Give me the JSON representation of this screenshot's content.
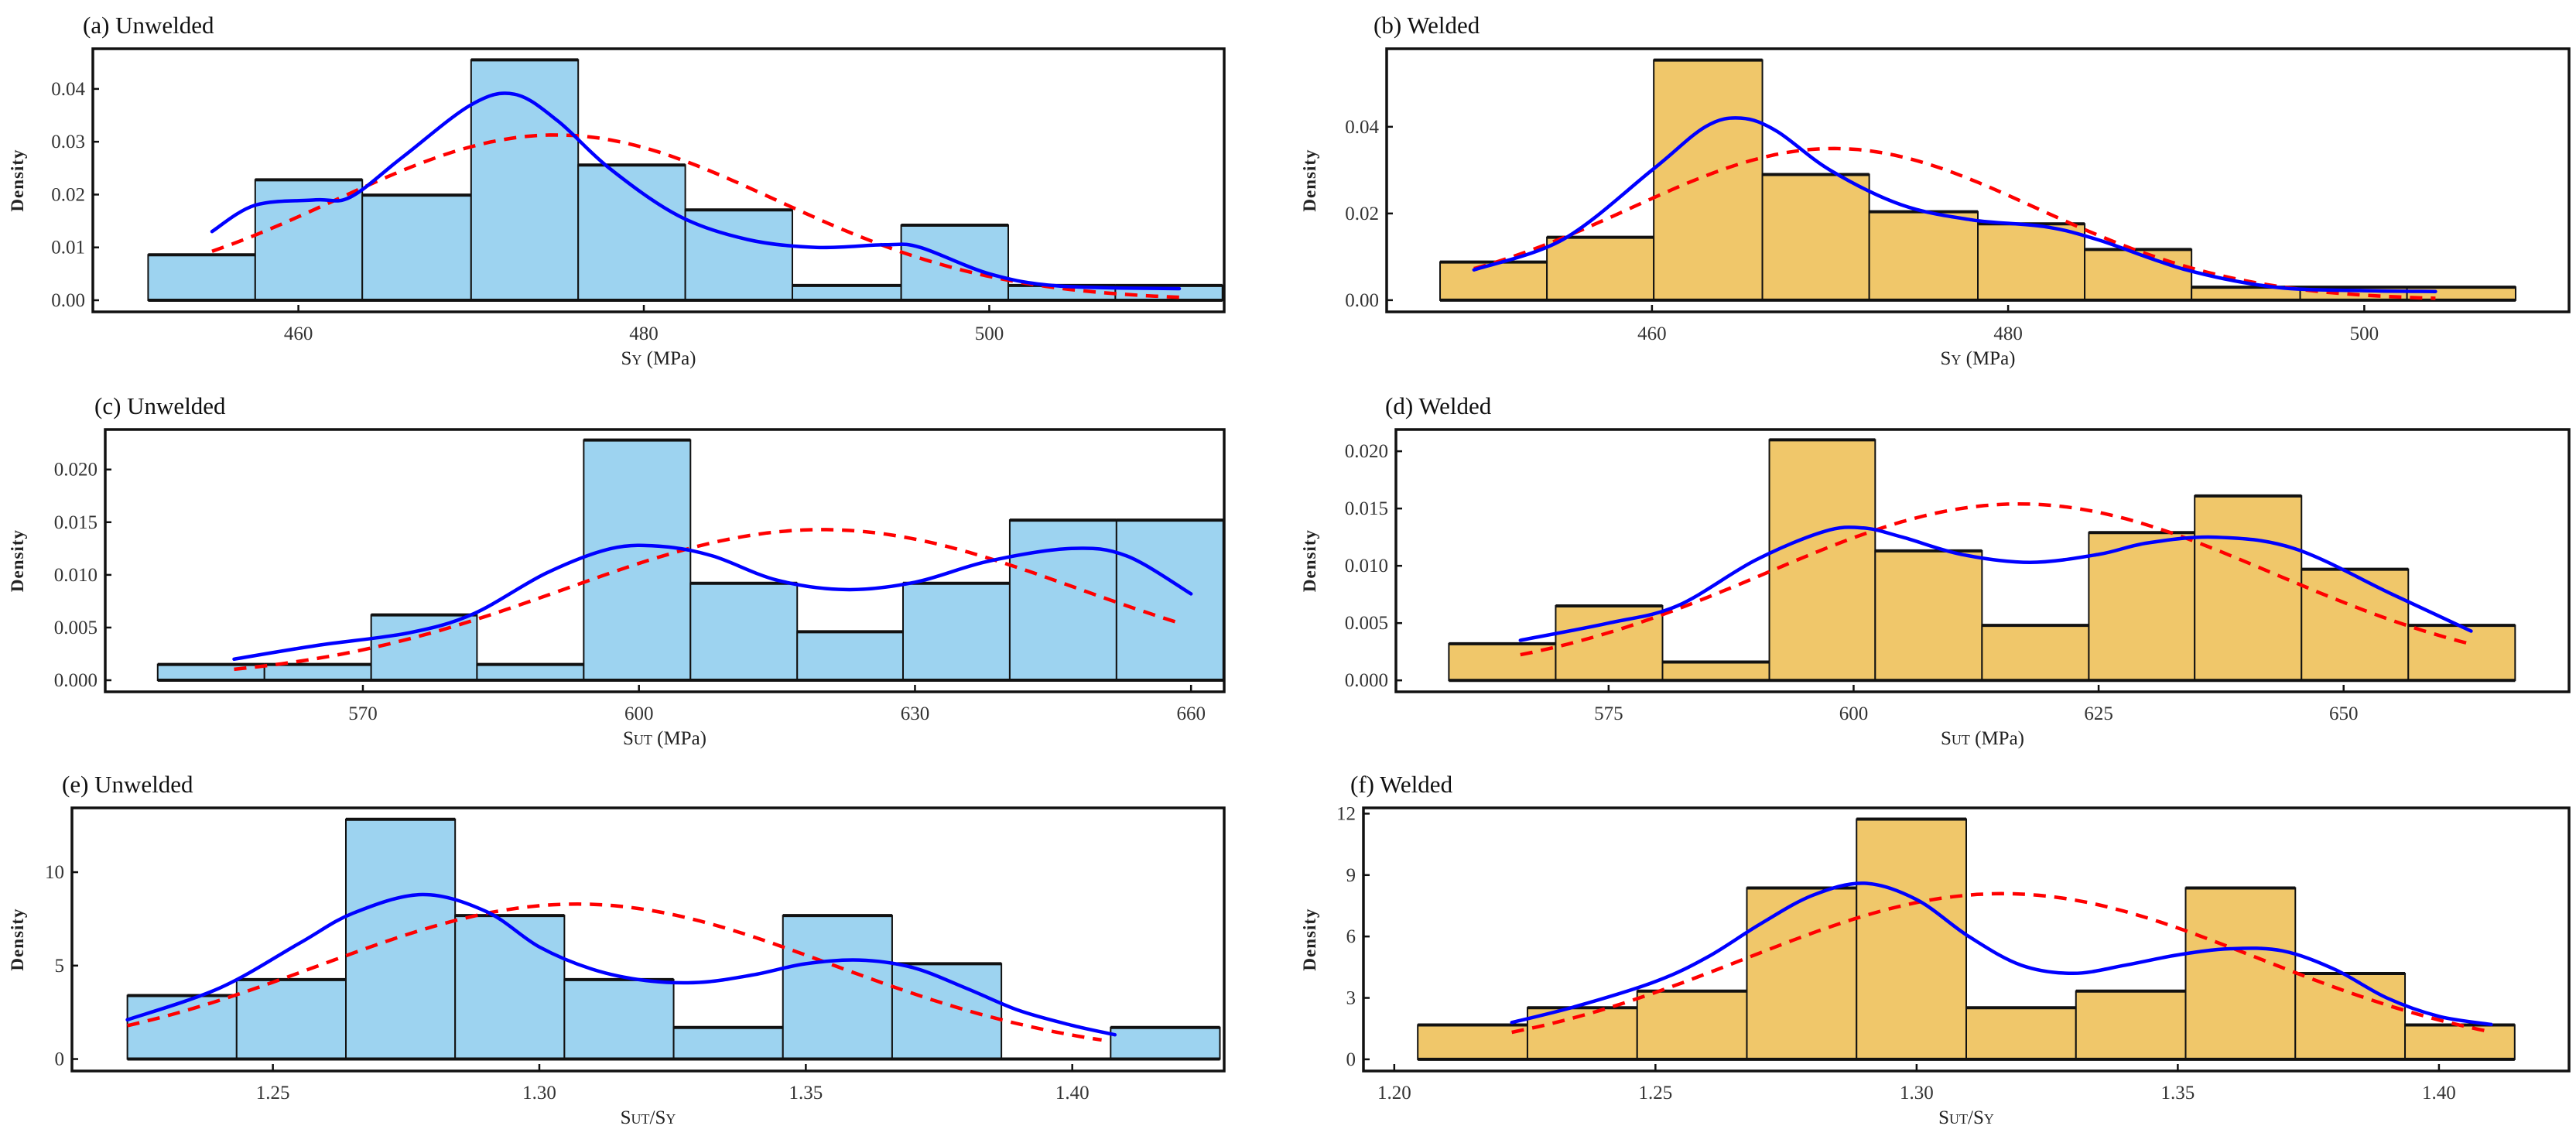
{
  "colors": {
    "unwelded_fill": "#9DD3F0",
    "welded_fill": "#F0C76A",
    "kde": "#0000FF",
    "normal": "#FF0000"
  },
  "chart_data": [
    {
      "type": "bar",
      "title": "(a) Unwelded",
      "group": "unwelded",
      "ylabel": "Density",
      "xlabel": [
        {
          "t": "S"
        },
        {
          "t": "Y",
          "small": true
        },
        {
          "t": " (MPa)"
        }
      ],
      "xlim": [
        448.1,
        513.6
      ],
      "ylim": [
        -0.0022,
        0.0476
      ],
      "xticks": [
        {
          "v": 460,
          "label": "460"
        },
        {
          "v": 480,
          "label": "480"
        },
        {
          "v": 500,
          "label": "500"
        }
      ],
      "yticks": [
        {
          "v": 0,
          "label": "0.00"
        },
        {
          "v": 0.01,
          "label": "0.01"
        },
        {
          "v": 0.02,
          "label": "0.02"
        },
        {
          "v": 0.03,
          "label": "0.03"
        },
        {
          "v": 0.04,
          "label": "0.04"
        }
      ],
      "bin_edges": [
        451.3,
        457.5,
        463.7,
        470.0,
        476.2,
        482.4,
        488.6,
        494.9,
        501.1,
        507.3,
        513.5
      ],
      "density": [
        0.0086,
        0.0228,
        0.0199,
        0.0455,
        0.0256,
        0.0171,
        0.0028,
        0.0142,
        0.0028,
        0.0028
      ],
      "kde": [
        [
          455,
          0.013
        ],
        [
          457.5,
          0.018
        ],
        [
          461,
          0.019
        ],
        [
          463,
          0.0195
        ],
        [
          466,
          0.027
        ],
        [
          470,
          0.037
        ],
        [
          472.5,
          0.039
        ],
        [
          475,
          0.034
        ],
        [
          478,
          0.025
        ],
        [
          482,
          0.016
        ],
        [
          486,
          0.0115
        ],
        [
          490,
          0.01
        ],
        [
          494,
          0.0105
        ],
        [
          496,
          0.01
        ],
        [
          500,
          0.005
        ],
        [
          504,
          0.0027
        ],
        [
          511,
          0.0022
        ]
      ],
      "normal": {
        "mean": 474.9,
        "sd": 12.75,
        "range": [
          455,
          511
        ]
      }
    },
    {
      "type": "bar",
      "title": "(b) Welded",
      "group": "welded",
      "ylabel": "Density",
      "xlabel": [
        {
          "t": "S"
        },
        {
          "t": "Y",
          "small": true
        },
        {
          "t": " (MPa)"
        }
      ],
      "xlim": [
        445.1,
        511.5
      ],
      "ylim": [
        -0.0027,
        0.058
      ],
      "xticks": [
        {
          "v": 460,
          "label": "460"
        },
        {
          "v": 480,
          "label": "480"
        },
        {
          "v": 500,
          "label": "500"
        }
      ],
      "yticks": [
        {
          "v": 0,
          "label": "0.00"
        },
        {
          "v": 0.02,
          "label": "0.02"
        },
        {
          "v": 0.04,
          "label": "0.04"
        }
      ],
      "bin_edges": [
        448.1,
        454.1,
        460.1,
        466.2,
        472.2,
        478.3,
        484.3,
        490.3,
        496.4,
        502.4,
        508.5
      ],
      "density": [
        0.0088,
        0.0145,
        0.0554,
        0.029,
        0.0204,
        0.0176,
        0.0117,
        0.003,
        0.003,
        0.003
      ],
      "kde": [
        [
          450,
          0.007
        ],
        [
          455,
          0.014
        ],
        [
          460,
          0.03
        ],
        [
          463,
          0.04
        ],
        [
          465,
          0.042
        ],
        [
          467,
          0.039
        ],
        [
          470,
          0.03
        ],
        [
          474,
          0.022
        ],
        [
          478,
          0.0185
        ],
        [
          482,
          0.017
        ],
        [
          485,
          0.014
        ],
        [
          490,
          0.007
        ],
        [
          495,
          0.003
        ],
        [
          500,
          0.0022
        ],
        [
          504,
          0.002
        ]
      ],
      "normal": {
        "mean": 470.2,
        "sd": 11.4,
        "range": [
          450,
          504
        ]
      }
    },
    {
      "type": "bar",
      "title": "(c) Unwelded",
      "group": "unwelded",
      "ylabel": "Density",
      "xlabel": [
        {
          "t": "S"
        },
        {
          "t": "UT",
          "small": true
        },
        {
          "t": " (MPa)"
        }
      ],
      "xlim": [
        542.0,
        663.6
      ],
      "ylim": [
        -0.0011,
        0.0238
      ],
      "xticks": [
        {
          "v": 570,
          "label": "570"
        },
        {
          "v": 600,
          "label": "600"
        },
        {
          "v": 630,
          "label": "630"
        },
        {
          "v": 660,
          "label": "660"
        }
      ],
      "yticks": [
        {
          "v": 0,
          "label": "0.000"
        },
        {
          "v": 0.005,
          "label": "0.005"
        },
        {
          "v": 0.01,
          "label": "0.010"
        },
        {
          "v": 0.015,
          "label": "0.015"
        },
        {
          "v": 0.02,
          "label": "0.020"
        }
      ],
      "bin_edges": [
        547.7,
        559.3,
        570.9,
        582.4,
        594.0,
        605.6,
        617.2,
        628.7,
        640.3,
        651.9,
        663.5
      ],
      "density": [
        0.0015,
        0.0015,
        0.0062,
        0.0015,
        0.0228,
        0.0092,
        0.0046,
        0.0092,
        0.0152,
        0.0152
      ],
      "kde": [
        [
          556,
          0.002
        ],
        [
          565,
          0.0033
        ],
        [
          575,
          0.0045
        ],
        [
          582,
          0.0063
        ],
        [
          590,
          0.0102
        ],
        [
          597,
          0.0125
        ],
        [
          602.5,
          0.0127
        ],
        [
          608,
          0.0118
        ],
        [
          615,
          0.0095
        ],
        [
          622.5,
          0.0086
        ],
        [
          630,
          0.0093
        ],
        [
          638,
          0.0113
        ],
        [
          647,
          0.0125
        ],
        [
          653,
          0.0118
        ],
        [
          660,
          0.0082
        ]
      ],
      "normal": {
        "mean": 619.9,
        "sd": 27.9,
        "range": [
          556,
          659
        ]
      }
    },
    {
      "type": "bar",
      "title": "(d) Welded",
      "group": "welded",
      "ylabel": "Density",
      "xlabel": [
        {
          "t": "S"
        },
        {
          "t": "UT",
          "small": true
        },
        {
          "t": " (MPa)"
        }
      ],
      "xlim": [
        553.3,
        673.0
      ],
      "ylim": [
        -0.001,
        0.0219
      ],
      "xticks": [
        {
          "v": 575,
          "label": "575"
        },
        {
          "v": 600,
          "label": "600"
        },
        {
          "v": 625,
          "label": "625"
        },
        {
          "v": 650,
          "label": "650"
        }
      ],
      "yticks": [
        {
          "v": 0,
          "label": "0.000"
        },
        {
          "v": 0.005,
          "label": "0.005"
        },
        {
          "v": 0.01,
          "label": "0.010"
        },
        {
          "v": 0.015,
          "label": "0.015"
        },
        {
          "v": 0.02,
          "label": "0.020"
        }
      ],
      "bin_edges": [
        558.7,
        569.6,
        580.5,
        591.4,
        602.2,
        613.1,
        624.0,
        634.8,
        645.7,
        656.6,
        667.5
      ],
      "density": [
        0.0032,
        0.0065,
        0.0016,
        0.021,
        0.0113,
        0.0048,
        0.0129,
        0.0161,
        0.0097,
        0.0048
      ],
      "kde": [
        [
          566,
          0.0035
        ],
        [
          575,
          0.005
        ],
        [
          582,
          0.0065
        ],
        [
          590,
          0.0105
        ],
        [
          597,
          0.013
        ],
        [
          601,
          0.0133
        ],
        [
          605,
          0.0125
        ],
        [
          611,
          0.011
        ],
        [
          618,
          0.0103
        ],
        [
          625,
          0.011
        ],
        [
          630,
          0.012
        ],
        [
          637,
          0.0125
        ],
        [
          645,
          0.0115
        ],
        [
          655,
          0.0075
        ],
        [
          663,
          0.0043
        ]
      ],
      "normal": {
        "mean": 616.9,
        "sd": 25.9,
        "range": [
          566,
          663
        ]
      }
    },
    {
      "type": "bar",
      "title": "(e) Unwelded",
      "group": "unwelded",
      "ylabel": "Density",
      "xlabel": [
        {
          "t": "S"
        },
        {
          "t": "UT",
          "small": true
        },
        {
          "t": "/S"
        },
        {
          "t": "Y",
          "small": true
        }
      ],
      "xlim": [
        1.2123,
        1.4285
      ],
      "ylim": [
        -0.64,
        13.44
      ],
      "xticks": [
        {
          "v": 1.25,
          "label": "1.25"
        },
        {
          "v": 1.3,
          "label": "1.30"
        },
        {
          "v": 1.35,
          "label": "1.35"
        },
        {
          "v": 1.4,
          "label": "1.40"
        }
      ],
      "yticks": [
        {
          "v": 0,
          "label": "0"
        },
        {
          "v": 5,
          "label": "5"
        },
        {
          "v": 10,
          "label": "10"
        }
      ],
      "bin_edges": [
        1.2227,
        1.2432,
        1.2637,
        1.2842,
        1.3047,
        1.3252,
        1.3457,
        1.3662,
        1.3867,
        1.4072,
        1.4277
      ],
      "density": [
        3.4,
        4.25,
        12.83,
        7.68,
        4.25,
        1.69,
        7.68,
        5.1,
        0,
        1.69
      ],
      "kde": [
        [
          1.2227,
          2.1
        ],
        [
          1.24,
          3.8
        ],
        [
          1.255,
          6.2
        ],
        [
          1.265,
          7.8
        ],
        [
          1.278,
          8.8
        ],
        [
          1.29,
          7.9
        ],
        [
          1.3,
          6.0
        ],
        [
          1.31,
          4.8
        ],
        [
          1.32,
          4.2
        ],
        [
          1.33,
          4.1
        ],
        [
          1.34,
          4.5
        ],
        [
          1.35,
          5.1
        ],
        [
          1.36,
          5.3
        ],
        [
          1.37,
          4.9
        ],
        [
          1.38,
          3.8
        ],
        [
          1.39,
          2.6
        ],
        [
          1.4,
          1.8
        ],
        [
          1.408,
          1.3
        ]
      ],
      "normal": {
        "mean": 1.307,
        "sd": 0.0481,
        "range": [
          1.2227,
          1.4055
        ]
      }
    },
    {
      "type": "bar",
      "title": "(f) Welded",
      "group": "welded",
      "ylabel": "Density",
      "xlabel": [
        {
          "t": "S"
        },
        {
          "t": "UT",
          "small": true
        },
        {
          "t": "/S"
        },
        {
          "t": "Y",
          "small": true
        }
      ],
      "xlim": [
        1.1941,
        1.4249
      ],
      "ylim": [
        -0.57,
        12.28
      ],
      "xticks": [
        {
          "v": 1.2,
          "label": "1.20"
        },
        {
          "v": 1.25,
          "label": "1.25"
        },
        {
          "v": 1.3,
          "label": "1.30"
        },
        {
          "v": 1.35,
          "label": "1.35"
        },
        {
          "v": 1.4,
          "label": "1.40"
        }
      ],
      "yticks": [
        {
          "v": 0,
          "label": "0"
        },
        {
          "v": 3,
          "label": "3"
        },
        {
          "v": 6,
          "label": "6"
        },
        {
          "v": 9,
          "label": "9"
        },
        {
          "v": 12,
          "label": "12"
        }
      ],
      "bin_edges": [
        1.2045,
        1.2255,
        1.2465,
        1.2675,
        1.2885,
        1.3095,
        1.3305,
        1.3515,
        1.3725,
        1.3935,
        1.4145
      ],
      "density": [
        1.68,
        2.52,
        3.33,
        8.37,
        11.73,
        2.52,
        3.33,
        8.37,
        4.19,
        1.68
      ],
      "kde": [
        [
          1.2225,
          1.8
        ],
        [
          1.235,
          2.6
        ],
        [
          1.25,
          3.8
        ],
        [
          1.26,
          5.0
        ],
        [
          1.27,
          6.6
        ],
        [
          1.28,
          8.0
        ],
        [
          1.29,
          8.6
        ],
        [
          1.3,
          7.8
        ],
        [
          1.31,
          6.0
        ],
        [
          1.32,
          4.6
        ],
        [
          1.33,
          4.2
        ],
        [
          1.34,
          4.6
        ],
        [
          1.35,
          5.1
        ],
        [
          1.36,
          5.4
        ],
        [
          1.37,
          5.3
        ],
        [
          1.38,
          4.4
        ],
        [
          1.39,
          3.0
        ],
        [
          1.4,
          2.1
        ],
        [
          1.41,
          1.7
        ]
      ],
      "normal": {
        "mean": 1.3164,
        "sd": 0.0493,
        "range": [
          1.2225,
          1.41
        ]
      }
    }
  ]
}
